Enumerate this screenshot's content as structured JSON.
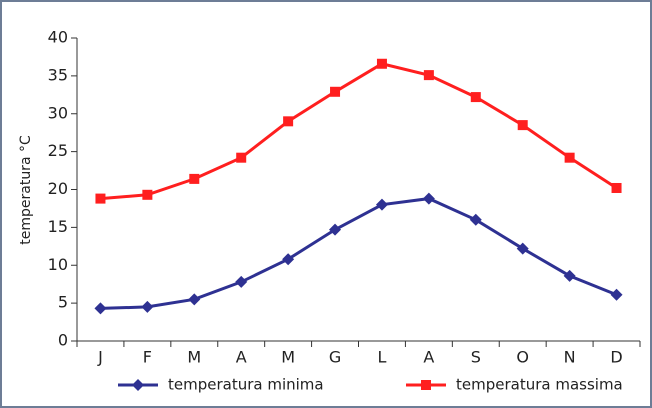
{
  "chart_data": {
    "type": "line",
    "ylabel": "temperatura °C",
    "categories": [
      "J",
      "F",
      "M",
      "A",
      "M",
      "G",
      "L",
      "A",
      "S",
      "O",
      "N",
      "D"
    ],
    "series": [
      {
        "name": "temperatura minima",
        "color": "#2e3192",
        "marker": "diamond",
        "values": [
          4.3,
          4.5,
          5.5,
          7.8,
          10.8,
          14.7,
          18.0,
          18.8,
          16.0,
          12.2,
          8.6,
          6.1
        ]
      },
      {
        "name": "temperatura massima",
        "color": "#ff1f1f",
        "marker": "square",
        "values": [
          18.8,
          19.3,
          21.4,
          24.2,
          29.0,
          32.9,
          36.6,
          35.1,
          32.2,
          28.5,
          24.2,
          20.2
        ]
      }
    ],
    "ylim": [
      0,
      40
    ],
    "yticks": [
      0,
      5,
      10,
      15,
      20,
      25,
      30,
      35,
      40
    ],
    "grid": false,
    "legend": "bottom"
  }
}
